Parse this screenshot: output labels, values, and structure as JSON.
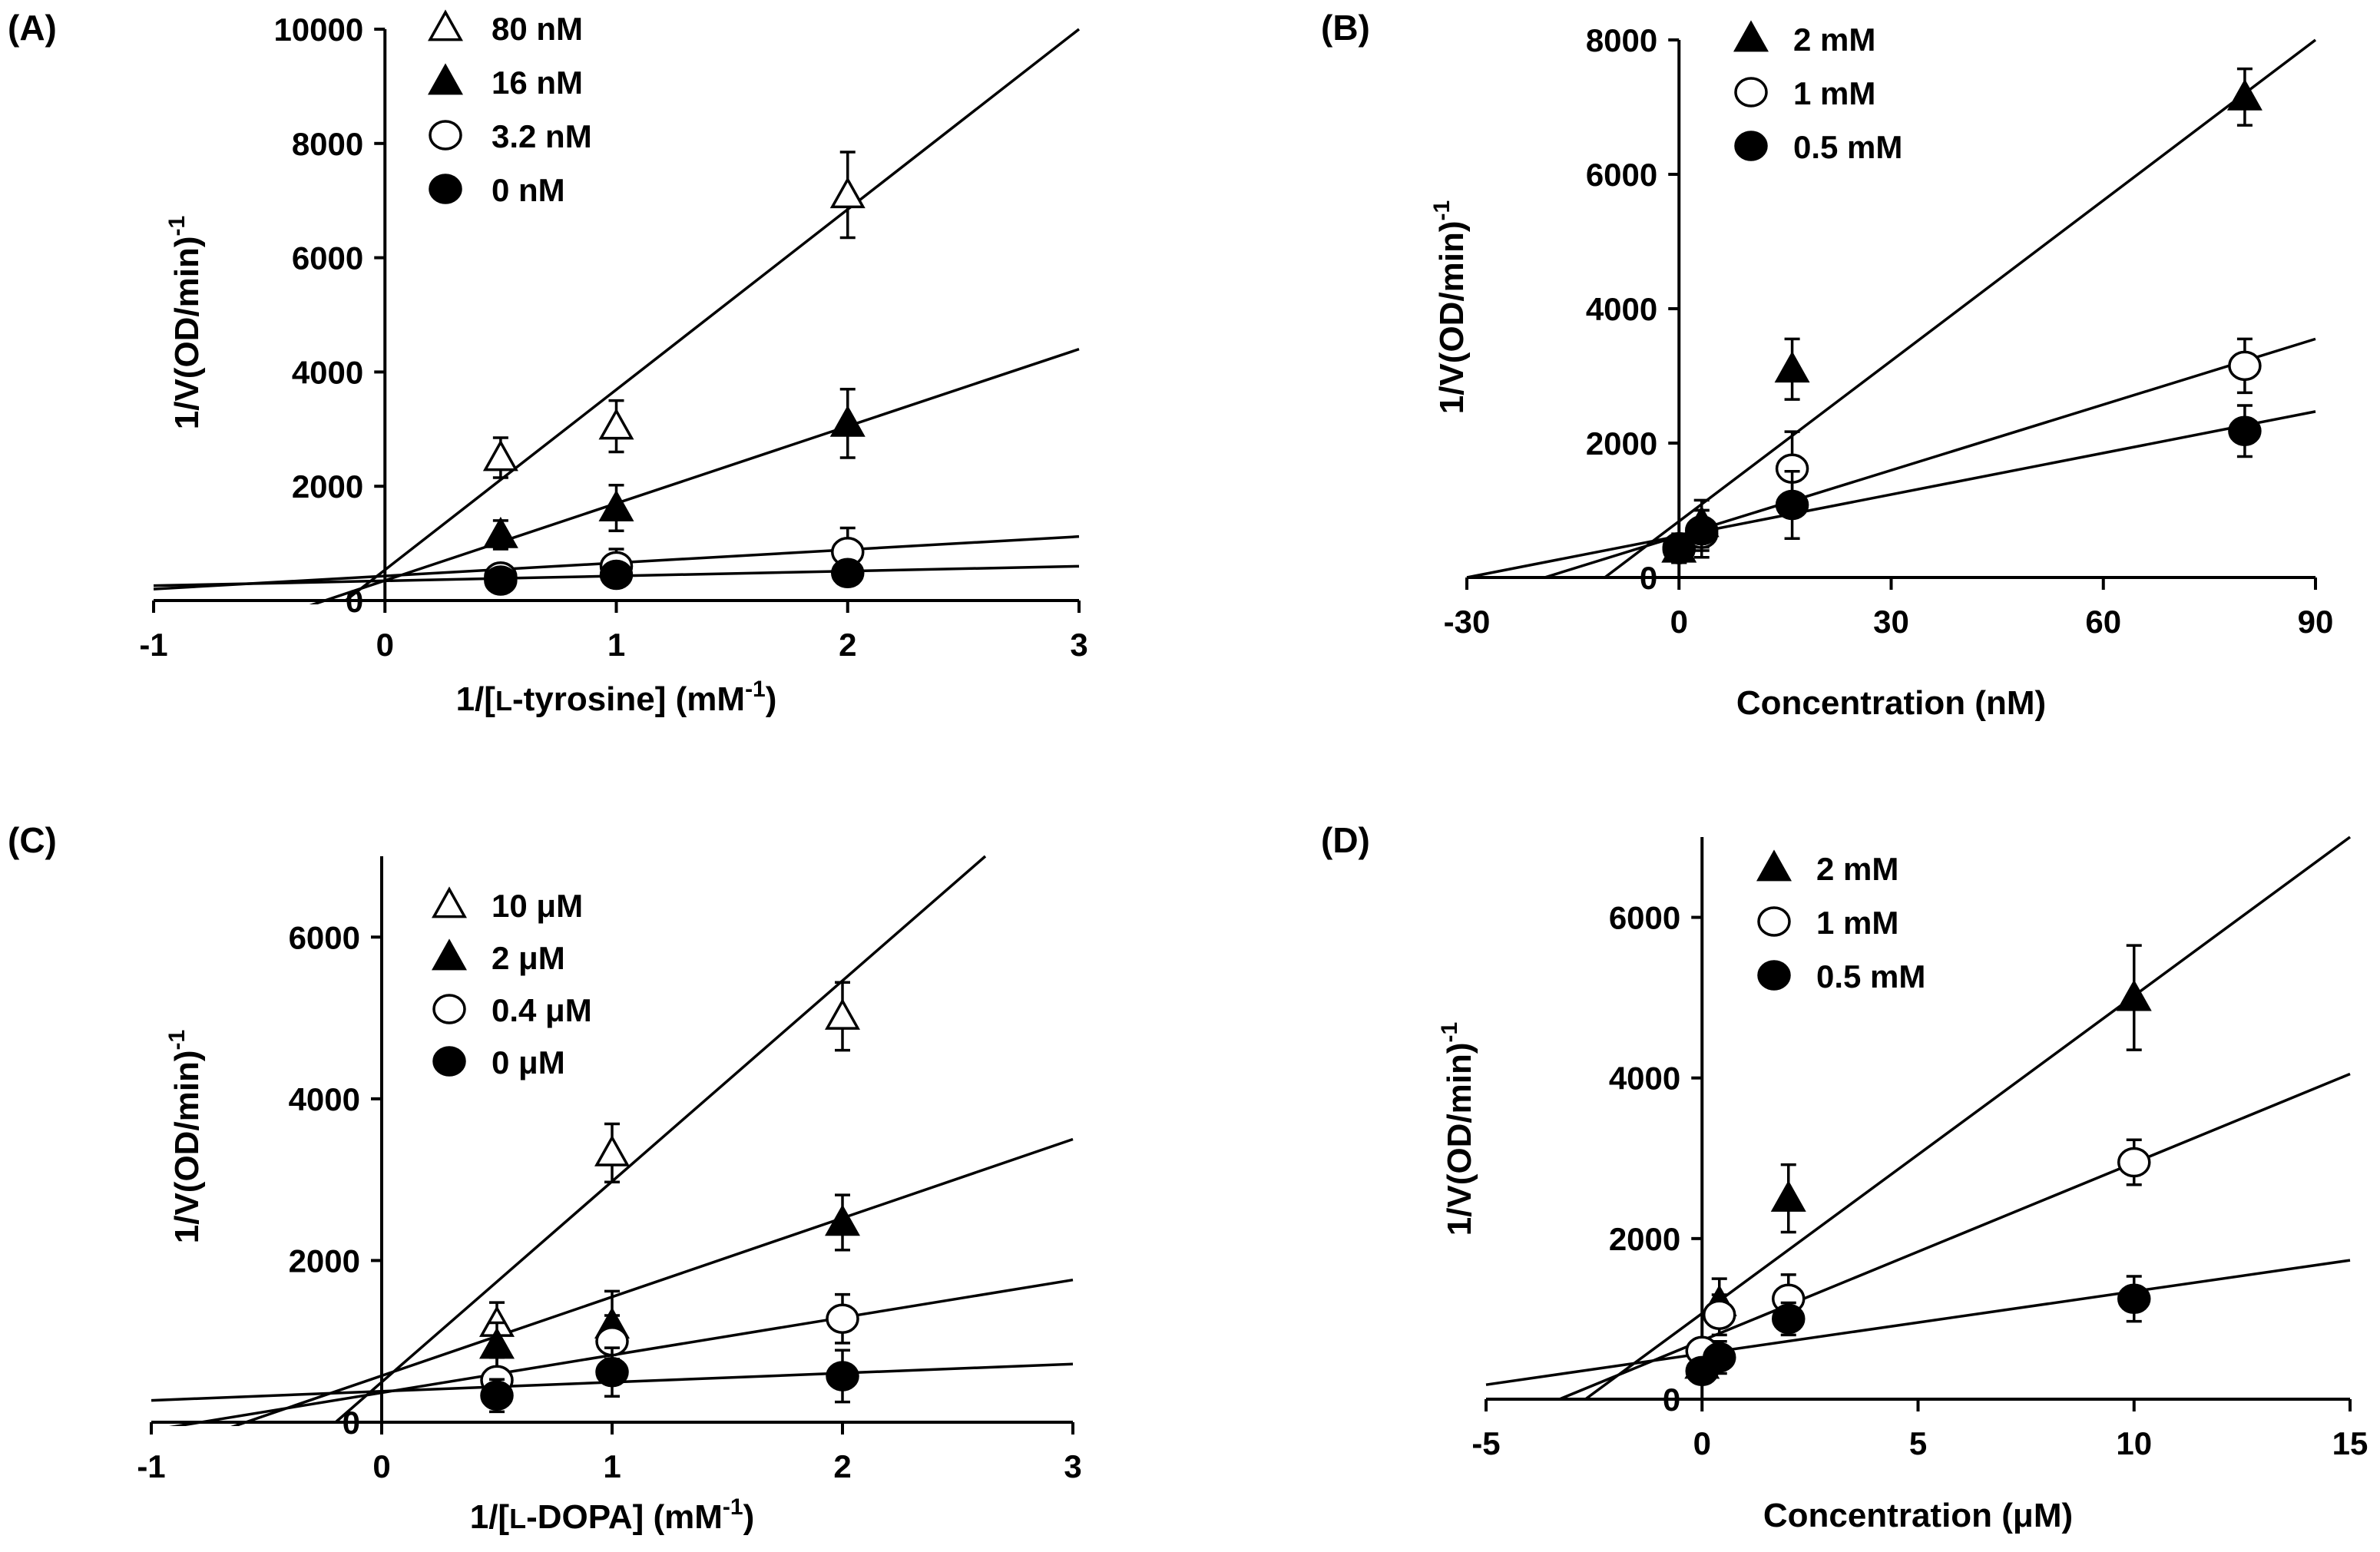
{
  "chart_data": [
    {
      "panel": "(A)",
      "type": "scatter",
      "xlabel": "1/[L-tyrosine] (mM-1)",
      "xlabel_main": "1/[",
      "xlabel_sc": "L",
      "xlabel_mid": "-tyrosine] (mM",
      "xlabel_sup": "-1",
      "xlabel_end": ")",
      "ylabel": "1/V(OD/min)-1",
      "ylabel_main": "1/V(OD/min)",
      "ylabel_sup": "-1",
      "xlim": [
        -1,
        3
      ],
      "ylim": [
        0,
        10000
      ],
      "xticks": [
        -1,
        0,
        1,
        2,
        3
      ],
      "yticks": [
        0,
        2000,
        4000,
        6000,
        8000,
        10000
      ],
      "series": [
        {
          "name": "80 nM",
          "marker": "triangle-open",
          "x": [
            0.5,
            1,
            2
          ],
          "y": [
            2500,
            3050,
            7100
          ],
          "err": [
            350,
            450,
            750
          ],
          "fit": [
            -0.1,
            3.0
          ]
        },
        {
          "name": "16 nM",
          "marker": "triangle-filled",
          "x": [
            0.5,
            1,
            2
          ],
          "y": [
            1150,
            1620,
            3100
          ],
          "err": [
            250,
            400,
            600
          ],
          "fit": [
            -1.0,
            3.0
          ]
        },
        {
          "name": "3.2 nM",
          "marker": "circle-open",
          "x": [
            0.5,
            1,
            2
          ],
          "y": [
            420,
            600,
            850
          ],
          "err": [
            150,
            300,
            420
          ],
          "fit": [
            -1.0,
            3.0
          ]
        },
        {
          "name": "0 nM",
          "marker": "circle-filled",
          "x": [
            0.5,
            1,
            2
          ],
          "y": [
            350,
            450,
            480
          ],
          "err": [
            100,
            150,
            120
          ],
          "fit": [
            -1.0,
            3.0
          ]
        }
      ],
      "fit_lines": [
        {
          "series": "80 nM",
          "x": [
            -0.17,
            3.0
          ],
          "y": [
            0,
            10000
          ]
        },
        {
          "series": "16 nM",
          "x": [
            -1.0,
            3.0
          ],
          "y": [
            -1000,
            4400
          ]
        },
        {
          "series": "3.2 nM",
          "x": [
            -1.0,
            3.0
          ],
          "y": [
            200,
            1120
          ]
        },
        {
          "series": "0 nM",
          "x": [
            -1.0,
            3.0
          ],
          "y": [
            260,
            600
          ]
        }
      ]
    },
    {
      "panel": "(B)",
      "type": "scatter",
      "xlabel": "Concentration (nM)",
      "ylabel": "1/V(OD/min)-1",
      "ylabel_main": "1/V(OD/min)",
      "ylabel_sup": "-1",
      "xlim": [
        -30,
        90
      ],
      "ylim": [
        0,
        8000
      ],
      "xticks": [
        -30,
        0,
        30,
        60,
        90
      ],
      "yticks": [
        0,
        2000,
        4000,
        6000,
        8000
      ],
      "series": [
        {
          "name": "2 mM",
          "marker": "triangle-filled",
          "x": [
            0,
            3.2,
            16,
            80
          ],
          "y": [
            420,
            800,
            3100,
            7150
          ],
          "err": [
            200,
            350,
            450,
            420
          ]
        },
        {
          "name": "1 mM",
          "marker": "circle-open",
          "x": [
            0,
            3.2,
            16,
            80
          ],
          "y": [
            450,
            650,
            1620,
            3150
          ],
          "err": [
            200,
            350,
            550,
            400
          ]
        },
        {
          "name": "0.5 mM",
          "marker": "circle-filled",
          "x": [
            0,
            3.2,
            16,
            80
          ],
          "y": [
            420,
            700,
            1080,
            2180
          ],
          "err": [
            200,
            300,
            500,
            380
          ]
        }
      ],
      "fit_lines": [
        {
          "series": "2 mM",
          "x": [
            -10.5,
            90
          ],
          "y": [
            0,
            8000
          ]
        },
        {
          "series": "1 mM",
          "x": [
            -19,
            90
          ],
          "y": [
            0,
            3550
          ]
        },
        {
          "series": "0.5 mM",
          "x": [
            -30,
            90
          ],
          "y": [
            0,
            2470
          ]
        }
      ]
    },
    {
      "panel": "(C)",
      "type": "scatter",
      "xlabel": "1/[L-DOPA] (mM-1)",
      "xlabel_main": "1/[",
      "xlabel_sc": "L",
      "xlabel_mid": "-DOPA] (mM",
      "xlabel_sup": "-1",
      "xlabel_end": ")",
      "ylabel": "1/V(OD/min)-1",
      "ylabel_main": "1/V(OD/min)",
      "ylabel_sup": "-1",
      "xlim": [
        -1,
        3
      ],
      "ylim": [
        0,
        7000
      ],
      "xticks": [
        -1,
        0,
        1,
        2,
        3
      ],
      "yticks": [
        0,
        2000,
        4000,
        6000
      ],
      "series": [
        {
          "name": "10 μM",
          "marker": "triangle-open",
          "x": [
            0.5,
            1,
            2
          ],
          "y": [
            1220,
            3330,
            5020
          ],
          "err": [
            260,
            360,
            420
          ]
        },
        {
          "name": "2 μM",
          "marker": "triangle-filled",
          "x": [
            0.5,
            1,
            2
          ],
          "y": [
            950,
            1200,
            2470
          ],
          "err": [
            280,
            420,
            340
          ]
        },
        {
          "name": "0.4 μM",
          "marker": "circle-open",
          "x": [
            0.5,
            1,
            2
          ],
          "y": [
            520,
            1000,
            1280
          ],
          "err": [
            280,
            320,
            300
          ]
        },
        {
          "name": "0 μM",
          "marker": "circle-filled",
          "x": [
            0.5,
            1,
            2
          ],
          "y": [
            330,
            620,
            570
          ],
          "err": [
            200,
            300,
            320
          ]
        }
      ],
      "fit_lines": [
        {
          "series": "10 μM",
          "x": [
            -0.2,
            2.62
          ],
          "y": [
            0,
            7000
          ]
        },
        {
          "series": "2 μM",
          "x": [
            -1.0,
            3.0
          ],
          "y": [
            -400,
            3500
          ]
        },
        {
          "series": "0.4 μM",
          "x": [
            -1.0,
            3.0
          ],
          "y": [
            -100,
            1760
          ]
        },
        {
          "series": "0 μM",
          "x": [
            -1.0,
            3.0
          ],
          "y": [
            270,
            720
          ]
        }
      ]
    },
    {
      "panel": "(D)",
      "type": "scatter",
      "xlabel": "Concentration (μM)",
      "ylabel": "1/V(OD/min)-1",
      "ylabel_main": "1/V(OD/min)",
      "ylabel_sup": "-1",
      "xlim": [
        -5,
        15
      ],
      "ylim": [
        0,
        7000
      ],
      "xticks": [
        -5,
        0,
        5,
        10,
        15
      ],
      "yticks": [
        0,
        2000,
        4000,
        6000
      ],
      "series": [
        {
          "name": "2 mM",
          "marker": "triangle-filled",
          "x": [
            0,
            0.4,
            2,
            10
          ],
          "y": [
            420,
            1200,
            2500,
            5000
          ],
          "err": [
            180,
            300,
            420,
            650
          ]
        },
        {
          "name": "1 mM",
          "marker": "circle-open",
          "x": [
            0,
            0.4,
            2,
            10
          ],
          "y": [
            600,
            1050,
            1250,
            2950
          ],
          "err": [
            150,
            250,
            300,
            280
          ]
        },
        {
          "name": "0.5 mM",
          "marker": "circle-filled",
          "x": [
            0,
            0.4,
            2,
            10
          ],
          "y": [
            350,
            520,
            1000,
            1250
          ],
          "err": [
            150,
            200,
            200,
            280
          ]
        }
      ],
      "fit_lines": [
        {
          "series": "2 mM",
          "x": [
            -2.7,
            15
          ],
          "y": [
            0,
            7000
          ]
        },
        {
          "series": "1 mM",
          "x": [
            -3.3,
            15
          ],
          "y": [
            0,
            4050
          ]
        },
        {
          "series": "0.5 mM",
          "x": [
            -5,
            15
          ],
          "y": [
            180,
            1730
          ]
        }
      ]
    }
  ]
}
